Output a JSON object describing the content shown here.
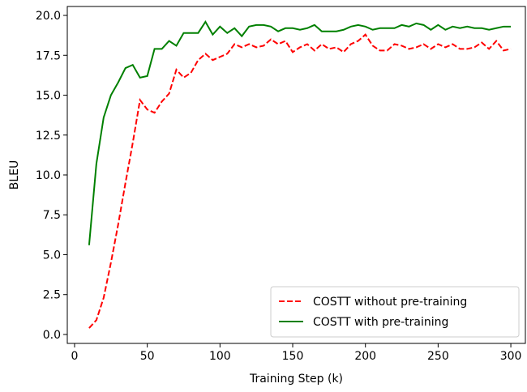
{
  "chart_data": {
    "type": "line",
    "x": [
      10,
      15,
      20,
      25,
      30,
      35,
      40,
      45,
      50,
      55,
      60,
      65,
      70,
      75,
      80,
      85,
      90,
      95,
      100,
      105,
      110,
      115,
      120,
      125,
      130,
      135,
      140,
      145,
      150,
      155,
      160,
      165,
      170,
      175,
      180,
      185,
      190,
      195,
      200,
      205,
      210,
      215,
      220,
      225,
      230,
      235,
      240,
      245,
      250,
      255,
      260,
      265,
      270,
      275,
      280,
      285,
      290,
      295,
      300
    ],
    "series": [
      {
        "name": "COSTT without pre-training",
        "color": "#ff0000",
        "dash": true,
        "values": [
          0.4,
          0.9,
          2.3,
          4.5,
          6.9,
          9.5,
          12.0,
          14.7,
          14.1,
          13.9,
          14.6,
          15.1,
          16.6,
          16.1,
          16.4,
          17.2,
          17.6,
          17.2,
          17.4,
          17.6,
          18.2,
          18.0,
          18.2,
          18.0,
          18.1,
          18.5,
          18.2,
          18.4,
          17.7,
          18.0,
          18.2,
          17.8,
          18.2,
          17.9,
          18.0,
          17.7,
          18.2,
          18.4,
          18.8,
          18.1,
          17.8,
          17.8,
          18.2,
          18.1,
          17.9,
          18.0,
          18.2,
          17.9,
          18.2,
          18.0,
          18.2,
          17.9,
          17.9,
          18.0,
          18.3,
          17.9,
          18.4,
          17.8,
          17.9
        ]
      },
      {
        "name": "COSTT with pre-training",
        "color": "#008000",
        "dash": false,
        "values": [
          5.6,
          10.7,
          13.6,
          15.0,
          15.8,
          16.7,
          16.9,
          16.1,
          16.2,
          17.9,
          17.9,
          18.4,
          18.1,
          18.9,
          18.9,
          18.9,
          19.6,
          18.8,
          19.3,
          18.9,
          19.2,
          18.7,
          19.3,
          19.4,
          19.4,
          19.3,
          19.0,
          19.2,
          19.2,
          19.1,
          19.2,
          19.4,
          19.0,
          19.0,
          19.0,
          19.1,
          19.3,
          19.4,
          19.3,
          19.1,
          19.2,
          19.2,
          19.2,
          19.4,
          19.3,
          19.5,
          19.4,
          19.1,
          19.4,
          19.1,
          19.3,
          19.2,
          19.3,
          19.2,
          19.2,
          19.1,
          19.2,
          19.3,
          19.3
        ]
      }
    ],
    "xlabel": "Training Step (k)",
    "ylabel": "BLEU",
    "xlim": [
      -5,
      310
    ],
    "ylim": [
      -0.56,
      20.56
    ],
    "xticks": [
      0,
      50,
      100,
      150,
      200,
      250,
      300
    ],
    "yticks": [
      {
        "value": 0,
        "label": "0.0"
      },
      2.5,
      {
        "value": 5,
        "label": "5.0"
      },
      7.5,
      {
        "value": 10,
        "label": "10.0"
      },
      12.5,
      {
        "value": 15,
        "label": "15.0"
      },
      17.5,
      {
        "value": 20,
        "label": "20.0"
      }
    ],
    "legend": "lower right"
  }
}
